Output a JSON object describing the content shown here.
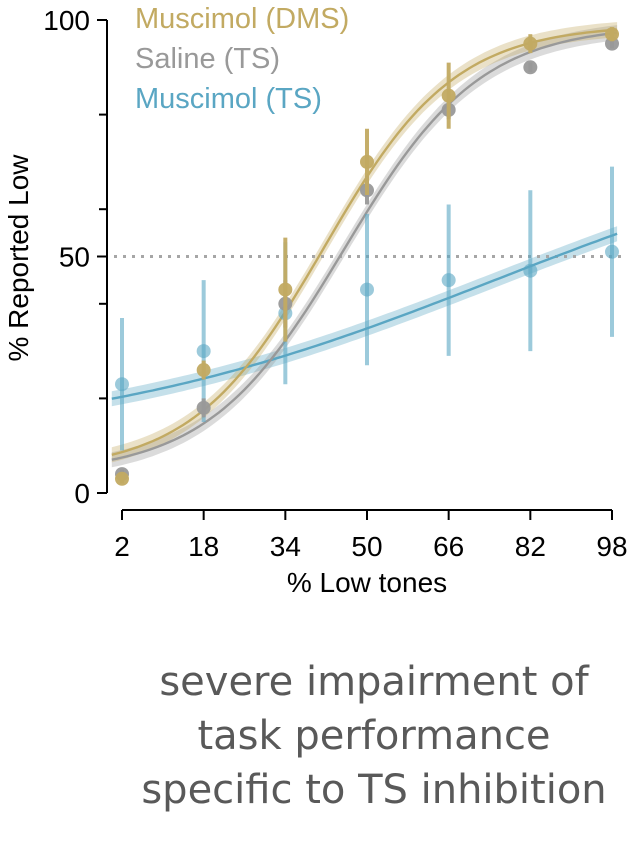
{
  "chart_data": {
    "type": "line",
    "xlabel": "% Low tones",
    "ylabel": "% Reported Low",
    "xlim": [
      2,
      98
    ],
    "ylim": [
      0,
      100
    ],
    "x_ticks": [
      2,
      18,
      34,
      50,
      66,
      82,
      98
    ],
    "y_ticks": [
      0,
      50,
      100
    ],
    "y_minor_ticks": [
      20,
      40,
      60,
      80
    ],
    "reference_line": 50,
    "legend_position": "top-left",
    "series": [
      {
        "name": "Muscimol (DMS)",
        "color": "#c2aa62",
        "x": [
          2,
          18,
          34,
          50,
          66,
          82,
          98
        ],
        "y": [
          3,
          26,
          43,
          70,
          84,
          95,
          97
        ],
        "err": [
          1,
          2,
          11,
          7,
          7,
          2,
          1.5
        ],
        "fit": {
          "x0": 41.5,
          "k": 0.078,
          "lo": 4.5,
          "hi": 99
        }
      },
      {
        "name": "Saline (TS)",
        "color": "#999999",
        "x": [
          2,
          18,
          34,
          50,
          66,
          82,
          98
        ],
        "y": [
          4,
          18,
          40,
          64,
          81,
          90,
          95
        ],
        "err": [
          1,
          2,
          5,
          3,
          2,
          1,
          1
        ],
        "fit": {
          "x0": 45.5,
          "k": 0.075,
          "lo": 4,
          "hi": 99
        }
      },
      {
        "name": "Muscimol (TS)",
        "color": "#5aa6c3",
        "x": [
          2,
          18,
          34,
          50,
          66,
          82,
          98
        ],
        "y": [
          23,
          30,
          38,
          43,
          45,
          47,
          51
        ],
        "err": [
          14,
          15,
          15,
          16,
          16,
          17,
          18
        ],
        "fit": {
          "x0": 75,
          "k": 0.024,
          "lo": 10,
          "hi": 80
        }
      }
    ]
  },
  "caption": {
    "lines": [
      "severe impairment of",
      "task performance",
      "specific to TS inhibition"
    ]
  }
}
